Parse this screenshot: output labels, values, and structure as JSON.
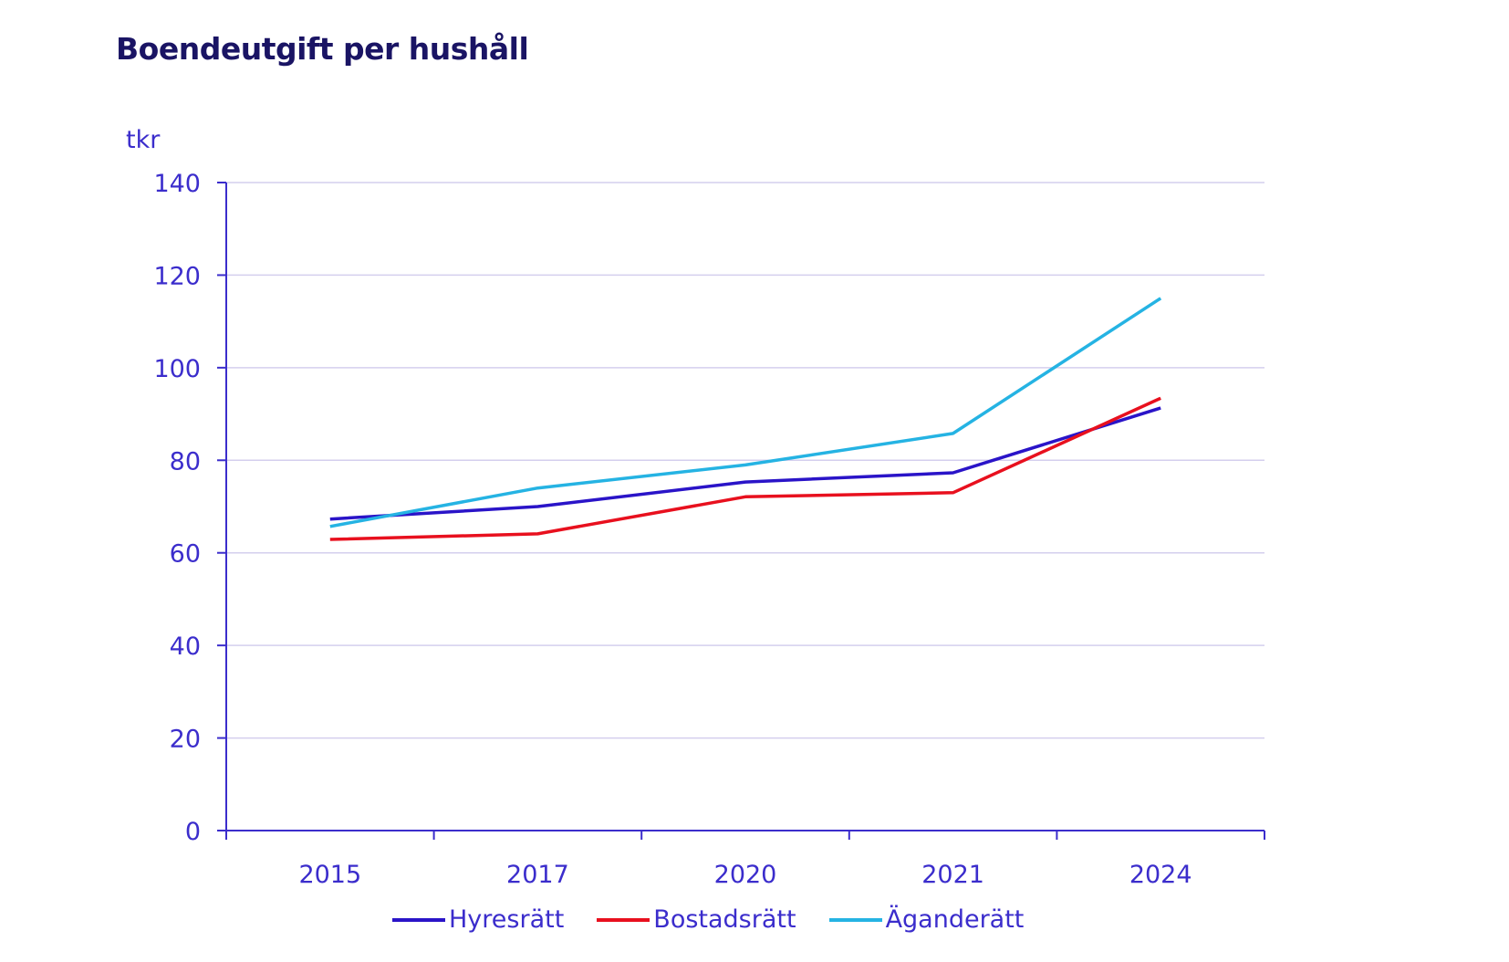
{
  "title": "Boendeutgift per hushåll",
  "colors": {
    "text": "#3b2dcc",
    "title": "#1a1464",
    "axis": "#3b2dcc",
    "grid": "#d4cfee"
  },
  "chart_data": {
    "type": "line",
    "title": "Boendeutgift per hushåll",
    "ylabel": "tkr",
    "xlabel": "",
    "categories": [
      "2015",
      "2017",
      "2020",
      "2021",
      "2024"
    ],
    "ylim": [
      0,
      140
    ],
    "yticks": [
      0,
      20,
      40,
      60,
      80,
      100,
      120,
      140
    ],
    "grid": true,
    "legend_position": "bottom",
    "series": [
      {
        "name": "Hyresrätt",
        "color": "#2a14c8",
        "values": [
          67.3,
          70.0,
          75.3,
          77.3,
          91.3
        ]
      },
      {
        "name": "Bostadsrätt",
        "color": "#e8101e",
        "values": [
          62.9,
          64.1,
          72.1,
          73.0,
          93.4
        ]
      },
      {
        "name": "Äganderätt",
        "color": "#25b3e3",
        "values": [
          65.7,
          74.0,
          79.0,
          85.8,
          115.0
        ]
      }
    ]
  }
}
